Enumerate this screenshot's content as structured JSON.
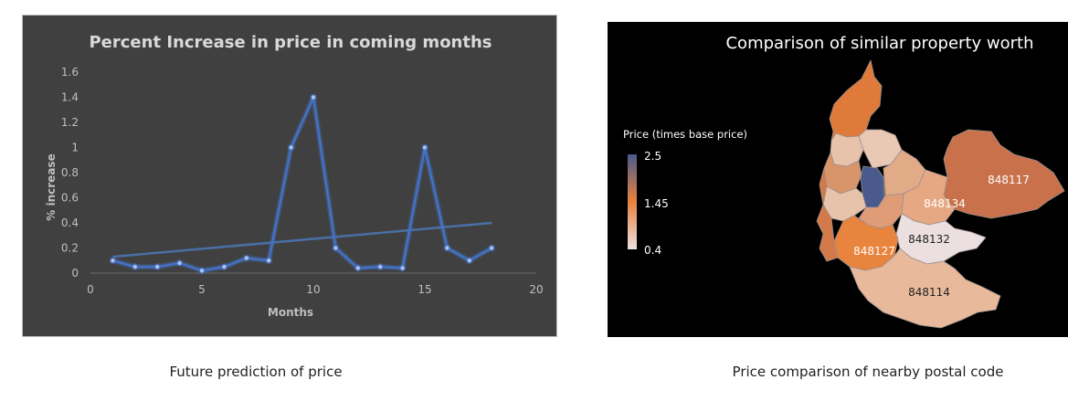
{
  "line_chart": {
    "chart_data": {
      "type": "line",
      "title": "Percent Increase in price in coming months",
      "xlabel": "Months",
      "ylabel": "% increase",
      "xlim": [
        0,
        20
      ],
      "ylim": [
        0,
        1.6
      ],
      "x_ticks": [
        "0",
        "5",
        "10",
        "15",
        "20"
      ],
      "y_ticks": [
        "0",
        "0.2",
        "0.4",
        "0.6",
        "0.8",
        "1",
        "1.2",
        "1.4",
        "1.6"
      ],
      "grid": false,
      "series": [
        {
          "x": [
            1,
            2,
            3,
            4,
            5,
            6,
            7,
            8,
            9,
            10,
            11,
            12,
            13,
            14,
            15,
            16,
            17,
            18
          ],
          "y": [
            0.1,
            0.05,
            0.05,
            0.08,
            0.02,
            0.05,
            0.12,
            0.1,
            1.0,
            1.4,
            0.2,
            0.04,
            0.05,
            0.04,
            1.0,
            0.2,
            0.1,
            0.2
          ]
        }
      ],
      "trendline": {
        "x": [
          1,
          18
        ],
        "y": [
          0.13,
          0.4
        ]
      },
      "colors": {
        "line": "#4472C4",
        "trend": "#4a6fa5",
        "background": "#404040"
      }
    }
  },
  "map_chart": {
    "title": "Comparison of similar property worth",
    "legend": {
      "title": "Price (times base price)",
      "max_label": "2.5",
      "mid_label": "1.45",
      "min_label": "0.4",
      "colors": [
        "#4a5a8c",
        "#e8823d",
        "#ebdfe0"
      ]
    },
    "region_labels": [
      "848117",
      "848134",
      "848132",
      "848127",
      "848114"
    ],
    "colors": {
      "background": "#000000"
    }
  },
  "captions": {
    "left": "Future prediction of price",
    "right": "Price comparison of nearby postal code"
  }
}
